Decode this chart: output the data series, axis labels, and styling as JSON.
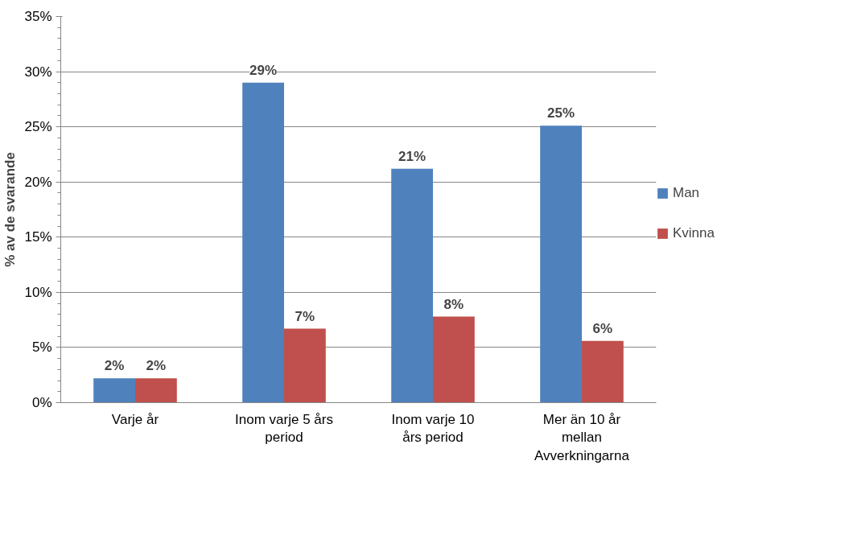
{
  "chart_data": {
    "type": "bar",
    "ylabel": "% av de svarande",
    "categories": [
      "Varje år",
      "Inom varje 5 års period",
      "Inom varje 10 års period",
      "Mer än 10 år mellan Avverkningarna"
    ],
    "series": [
      {
        "name": "Man",
        "color": "#4f81bd",
        "values": [
          2.2,
          29.0,
          21.2,
          25.1
        ],
        "value_labels": [
          "2%",
          "29%",
          "21%",
          "25%"
        ]
      },
      {
        "name": "Kvinna",
        "color": "#c0504d",
        "values": [
          2.2,
          6.7,
          7.8,
          5.6
        ],
        "value_labels": [
          "2%",
          "7%",
          "8%",
          "6%"
        ]
      }
    ],
    "ylim": [
      0,
      35
    ],
    "yticks": [
      {
        "value": 0,
        "label": "0%"
      },
      {
        "value": 5,
        "label": "5%"
      },
      {
        "value": 10,
        "label": "10%"
      },
      {
        "value": 15,
        "label": "15%"
      },
      {
        "value": 20,
        "label": "20%"
      },
      {
        "value": 25,
        "label": "25%"
      },
      {
        "value": 30,
        "label": "30%"
      },
      {
        "value": 35,
        "label": "35%"
      }
    ],
    "grid": "y",
    "legend": "right"
  }
}
